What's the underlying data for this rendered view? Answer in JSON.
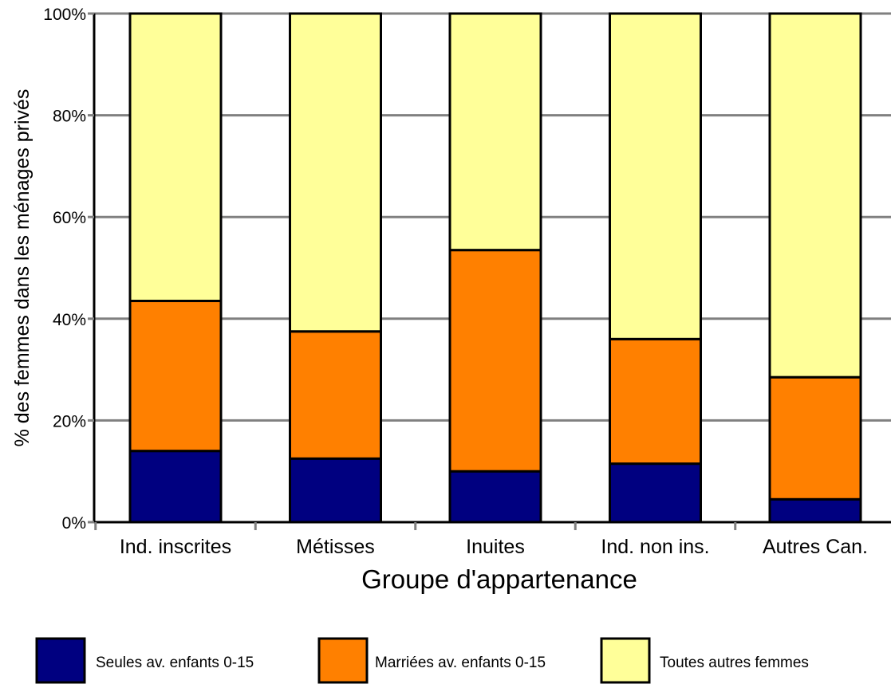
{
  "chart_data": {
    "type": "bar",
    "stacked": true,
    "categories": [
      "Ind. inscrites",
      "Métisses",
      "Inuites",
      "Ind. non ins.",
      "Autres Can."
    ],
    "series": [
      {
        "name": "Seules av. enfants 0-15",
        "color": "#000080",
        "values": [
          14,
          12.5,
          10,
          11.5,
          4.5
        ]
      },
      {
        "name": "Marriées av. enfants 0-15",
        "color": "#ff8000",
        "values": [
          29.5,
          25,
          43.5,
          24.5,
          24
        ]
      },
      {
        "name": "Toutes autres femmes",
        "color": "#ffff99",
        "values": [
          56.5,
          62.5,
          46.5,
          64,
          71.5
        ]
      }
    ],
    "xlabel": "Groupe d'appartenance",
    "ylabel": "% des femmes dans les ménages privés",
    "ylim": [
      0,
      100
    ],
    "yticks": [
      "0%",
      "20%",
      "40%",
      "60%",
      "80%",
      "100%"
    ],
    "grid": true,
    "legend": "bottom"
  }
}
